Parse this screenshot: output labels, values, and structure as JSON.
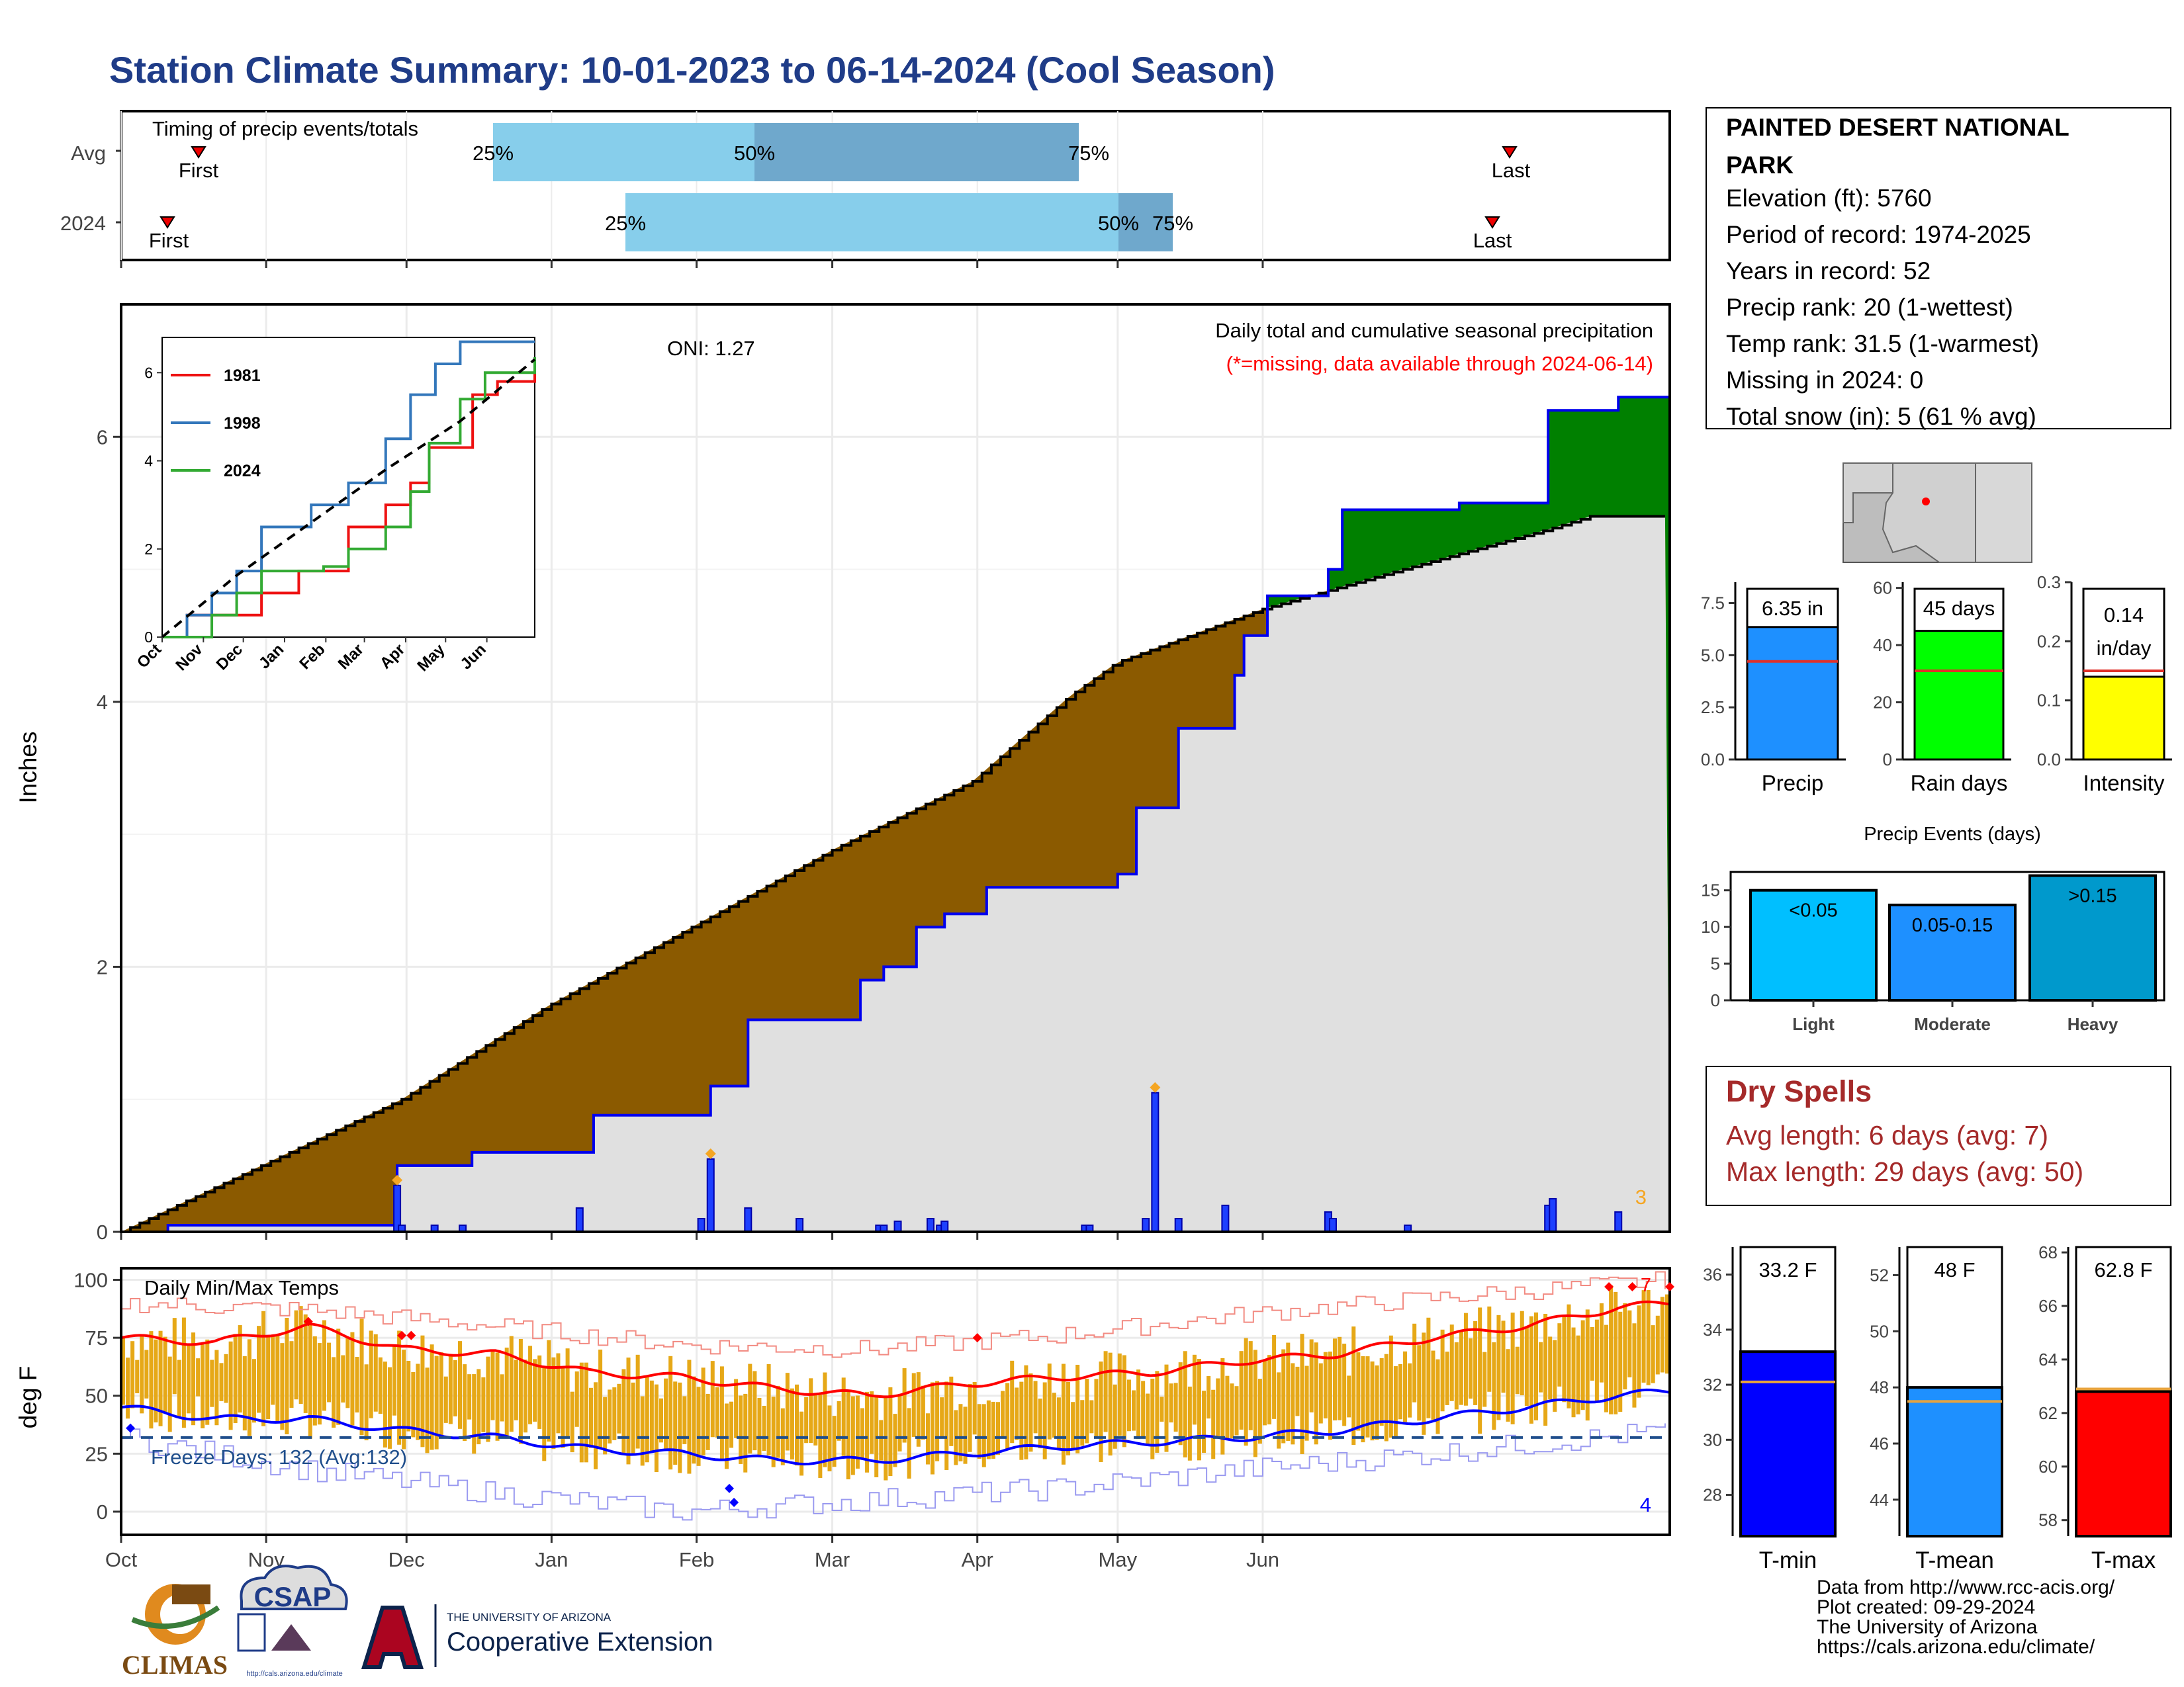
{
  "title": "Station Climate Summary: 10-01-2023 to 06-14-2024 (Cool Season)",
  "colors": {
    "title": "#1f3c88",
    "brown": "#8b5a00",
    "green": "#008000",
    "grey": "#e0e0e0",
    "blue_line": "#0000ee",
    "orange": "#e6a817",
    "red": "#ff0000",
    "light_blue": "#87ceeb",
    "mid_blue": "#6fa8cc"
  },
  "timing": {
    "label": "Timing of precip events/totals",
    "row_avg": "Avg",
    "row_year": "2024",
    "first": "First",
    "last": "Last",
    "avg_bars": {
      "p25": "25%",
      "p50": "50%",
      "p75": "75%"
    },
    "year_bars": {
      "p25": "25%",
      "p50": "50%",
      "p75": "75%"
    }
  },
  "station": {
    "name_line1": "PAINTED DESERT NATIONAL",
    "name_line2": "PARK",
    "elevation": "Elevation (ft): 5760",
    "period": "Period of record: 1974-2025",
    "years": "Years in record: 52",
    "precip_rank": "Precip rank: 20 (1-wettest)",
    "temp_rank": "Temp rank: 31.5 (1-warmest)",
    "missing": "Missing in 2024: 0",
    "snow": "Total snow (in): 5 (61 % avg)"
  },
  "main": {
    "ylabel": "Inches",
    "oni": "ONI: 1.27",
    "caption1": "Daily total and cumulative seasonal precipitation",
    "caption2": "(*=missing, data available through 2024-06-14)",
    "corner_count": "3",
    "yticks": [
      "0",
      "2",
      "4",
      "6"
    ],
    "months": [
      "Oct",
      "Nov",
      "Dec",
      "Jan",
      "Feb",
      "Mar",
      "Apr",
      "May",
      "Jun"
    ]
  },
  "inset": {
    "legend": [
      "1981",
      "1998",
      "2024"
    ],
    "yticks": [
      "0",
      "2",
      "4",
      "6"
    ],
    "months": [
      "Oct",
      "Nov",
      "Dec",
      "Jan",
      "Feb",
      "Mar",
      "Apr",
      "May",
      "Jun"
    ]
  },
  "bars3": {
    "precip": {
      "label": "Precip",
      "value_label": "6.35 in",
      "yticks": [
        "0.0",
        "2.5",
        "5.0",
        "7.5"
      ]
    },
    "raindays": {
      "label": "Rain days",
      "value_label": "45 days",
      "yticks": [
        "0",
        "20",
        "40",
        "60"
      ]
    },
    "intensity": {
      "label": "Intensity",
      "value_label1": "0.14",
      "value_label2": "in/day",
      "yticks": [
        "0.0",
        "0.1",
        "0.2",
        "0.3"
      ]
    }
  },
  "events": {
    "title": "Precip Events (days)",
    "yticks": [
      "0",
      "5",
      "10",
      "15"
    ],
    "bars": [
      {
        "cat": "Light",
        "label": "<0.05"
      },
      {
        "cat": "Moderate",
        "label": "0.05-0.15"
      },
      {
        "cat": "Heavy",
        "label": ">0.15"
      }
    ]
  },
  "dry": {
    "title": "Dry Spells",
    "avg": "Avg length: 6 days (avg: 7)",
    "max": "Max length: 29 days (avg: 50)"
  },
  "temps": {
    "title": "Daily Min/Max Temps",
    "ylabel": "deg F",
    "freeze": "Freeze Days: 132 (Avg:132)",
    "count_hot": "7",
    "count_cold": "4",
    "yticks": [
      "0",
      "25",
      "50",
      "75",
      "100"
    ],
    "months": [
      "Oct",
      "Nov",
      "Dec",
      "Jan",
      "Feb",
      "Mar",
      "Apr",
      "May",
      "Jun"
    ]
  },
  "tbars": {
    "tmin": {
      "label": "T-min",
      "value_label": "33.2 F",
      "yticks": [
        "28",
        "30",
        "32",
        "34",
        "36"
      ]
    },
    "tmean": {
      "label": "T-mean",
      "value_label": "48 F",
      "yticks": [
        "44",
        "46",
        "48",
        "50",
        "52"
      ]
    },
    "tmax": {
      "label": "T-max",
      "value_label": "62.8 F",
      "yticks": [
        "58",
        "60",
        "62",
        "64",
        "66",
        "68"
      ]
    }
  },
  "logos": {
    "climas": "CLIMAS",
    "csap": "CSAP",
    "csap_url": "http://cals.arizona.edu/climate",
    "ua_top": "THE UNIVERSITY OF ARIZONA",
    "ua_bottom": "Cooperative Extension"
  },
  "footer": {
    "line1": "Data from http://www.rcc-acis.org/",
    "line2": "Plot created: 09-29-2024",
    "line3": "The University of Arizona",
    "line4": "https://cals.arizona.edu/climate/"
  },
  "chart_data": [
    {
      "type": "area",
      "name": "cumulative seasonal precipitation",
      "ylim": [
        0,
        7
      ],
      "avg_cumulative": [
        [
          0,
          0
        ],
        [
          30,
          0.5
        ],
        [
          60,
          1.0
        ],
        [
          91,
          1.7
        ],
        [
          122,
          2.3
        ],
        [
          153,
          2.9
        ],
        [
          182,
          3.4
        ],
        [
          203,
          4.05
        ],
        [
          213,
          4.3
        ],
        [
          244,
          4.7
        ],
        [
          274,
          5.0
        ],
        [
          305,
          5.3
        ],
        [
          314,
          5.4
        ]
      ],
      "year_cumulative": [
        [
          0,
          0
        ],
        [
          10,
          0.05
        ],
        [
          30,
          0.05
        ],
        [
          48,
          0.05
        ],
        [
          59,
          0.5
        ],
        [
          75,
          0.6
        ],
        [
          98,
          0.6
        ],
        [
          101,
          0.88
        ],
        [
          124,
          0.88
        ],
        [
          126,
          1.1
        ],
        [
          134,
          1.6
        ],
        [
          153,
          1.6
        ],
        [
          158,
          1.9
        ],
        [
          163,
          2.0
        ],
        [
          170,
          2.3
        ],
        [
          176,
          2.4
        ],
        [
          185,
          2.6
        ],
        [
          206,
          2.6
        ],
        [
          213,
          2.7
        ],
        [
          217,
          3.2
        ],
        [
          226,
          3.8
        ],
        [
          238,
          4.2
        ],
        [
          240,
          4.5
        ],
        [
          245,
          4.8
        ],
        [
          258,
          5.0
        ],
        [
          261,
          5.45
        ],
        [
          275,
          5.45
        ],
        [
          286,
          5.5
        ],
        [
          305,
          6.2
        ],
        [
          320,
          6.3
        ],
        [
          331,
          6.35
        ]
      ],
      "daily_precip_in": [
        [
          59,
          0.35
        ],
        [
          60,
          0.05
        ],
        [
          67,
          0.05
        ],
        [
          73,
          0.05
        ],
        [
          98,
          0.18
        ],
        [
          124,
          0.1
        ],
        [
          126,
          0.55
        ],
        [
          134,
          0.18
        ],
        [
          145,
          0.1
        ],
        [
          162,
          0.05
        ],
        [
          163,
          0.05
        ],
        [
          166,
          0.08
        ],
        [
          173,
          0.1
        ],
        [
          175,
          0.05
        ],
        [
          176,
          0.08
        ],
        [
          206,
          0.05
        ],
        [
          207,
          0.05
        ],
        [
          219,
          0.1
        ],
        [
          221,
          1.05
        ],
        [
          226,
          0.1
        ],
        [
          236,
          0.2
        ],
        [
          258,
          0.15
        ],
        [
          259,
          0.1
        ],
        [
          275,
          0.05
        ],
        [
          305,
          0.2
        ],
        [
          306,
          0.25
        ],
        [
          320,
          0.15
        ]
      ],
      "months": [
        "Oct",
        "Nov",
        "Dec",
        "Jan",
        "Feb",
        "Mar",
        "Apr",
        "May",
        "Jun"
      ]
    },
    {
      "type": "line",
      "name": "inset cumulative precipitation comparison",
      "series": [
        {
          "name": "1981",
          "values": [
            [
              0,
              0
            ],
            [
              20,
              0.5
            ],
            [
              60,
              0.5
            ],
            [
              80,
              1.0
            ],
            [
              110,
              1.5
            ],
            [
              150,
              2.5
            ],
            [
              180,
              3.0
            ],
            [
              200,
              3.5
            ],
            [
              215,
              4.3
            ],
            [
              250,
              5.5
            ],
            [
              270,
              5.8
            ],
            [
              300,
              6.1
            ]
          ]
        },
        {
          "name": "1998",
          "values": [
            [
              0,
              0
            ],
            [
              20,
              0.5
            ],
            [
              40,
              1.0
            ],
            [
              60,
              1.5
            ],
            [
              80,
              2.5
            ],
            [
              120,
              3.0
            ],
            [
              150,
              3.5
            ],
            [
              180,
              4.5
            ],
            [
              200,
              5.5
            ],
            [
              220,
              6.2
            ],
            [
              240,
              6.7
            ],
            [
              300,
              6.7
            ]
          ]
        },
        {
          "name": "2024",
          "values": [
            [
              0,
              0
            ],
            [
              40,
              0.5
            ],
            [
              60,
              1.0
            ],
            [
              80,
              1.5
            ],
            [
              130,
              1.6
            ],
            [
              150,
              2.0
            ],
            [
              180,
              2.5
            ],
            [
              200,
              3.3
            ],
            [
              215,
              4.4
            ],
            [
              240,
              5.4
            ],
            [
              260,
              6.0
            ],
            [
              300,
              6.35
            ]
          ]
        }
      ],
      "avg_dashed": [
        [
          0,
          0
        ],
        [
          60,
          1.4
        ],
        [
          120,
          2.6
        ],
        [
          180,
          3.8
        ],
        [
          240,
          4.9
        ],
        [
          300,
          6.3
        ]
      ],
      "ylim": [
        0,
        6.8
      ]
    },
    {
      "type": "bar",
      "name": "precip summary",
      "categories": [
        "Precip",
        "Rain days",
        "Intensity"
      ],
      "values": [
        6.35,
        45,
        0.14
      ],
      "averages": [
        4.7,
        31,
        0.15
      ],
      "ylim": [
        [
          0,
          8.5
        ],
        [
          0,
          62
        ],
        [
          0,
          0.3
        ]
      ]
    },
    {
      "type": "bar",
      "name": "Precip Events (days)",
      "categories": [
        "Light",
        "Moderate",
        "Heavy"
      ],
      "values": [
        15,
        13,
        17
      ],
      "ylim": [
        0,
        17.5
      ]
    },
    {
      "type": "line",
      "name": "Daily Min/Max Temps",
      "ylim": [
        -10,
        105
      ],
      "freeze_line": 32,
      "smoothed_max": [
        [
          0,
          75
        ],
        [
          20,
          73
        ],
        [
          40,
          80
        ],
        [
          60,
          70
        ],
        [
          80,
          68
        ],
        [
          100,
          60
        ],
        [
          120,
          58
        ],
        [
          140,
          53
        ],
        [
          160,
          50
        ],
        [
          180,
          55
        ],
        [
          200,
          58
        ],
        [
          220,
          60
        ],
        [
          240,
          65
        ],
        [
          260,
          68
        ],
        [
          280,
          75
        ],
        [
          300,
          80
        ],
        [
          320,
          88
        ],
        [
          331,
          90
        ]
      ],
      "smoothed_min": [
        [
          0,
          45
        ],
        [
          20,
          40
        ],
        [
          40,
          40
        ],
        [
          60,
          35
        ],
        [
          80,
          32
        ],
        [
          100,
          27
        ],
        [
          120,
          25
        ],
        [
          140,
          22
        ],
        [
          160,
          22
        ],
        [
          180,
          25
        ],
        [
          200,
          28
        ],
        [
          220,
          30
        ],
        [
          240,
          32
        ],
        [
          260,
          35
        ],
        [
          280,
          40
        ],
        [
          300,
          45
        ],
        [
          320,
          50
        ],
        [
          331,
          52
        ]
      ],
      "record_max": [
        [
          0,
          90
        ],
        [
          40,
          87
        ],
        [
          80,
          80
        ],
        [
          120,
          72
        ],
        [
          160,
          70
        ],
        [
          200,
          76
        ],
        [
          240,
          85
        ],
        [
          280,
          92
        ],
        [
          331,
          100
        ]
      ],
      "record_min": [
        [
          0,
          32
        ],
        [
          40,
          18
        ],
        [
          80,
          8
        ],
        [
          120,
          0
        ],
        [
          160,
          5
        ],
        [
          200,
          10
        ],
        [
          240,
          18
        ],
        [
          280,
          25
        ],
        [
          331,
          35
        ]
      ]
    },
    {
      "type": "bar",
      "name": "temperature summary",
      "categories": [
        "T-min",
        "T-mean",
        "T-max"
      ],
      "values": [
        33.2,
        48,
        62.8
      ],
      "averages": [
        32.1,
        47.5,
        62.9
      ],
      "ylim": [
        [
          26.5,
          37
        ],
        [
          42.7,
          53
        ],
        [
          57.4,
          68.2
        ]
      ]
    }
  ]
}
